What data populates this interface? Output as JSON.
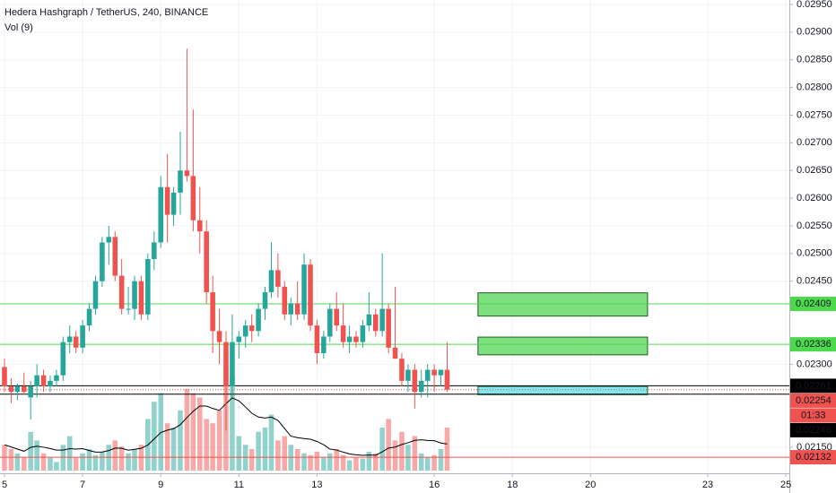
{
  "chart_data": {
    "type": "candlestick",
    "title": "Hedera Hashgraph / TetherUS, 240, BINANCE",
    "volume_title": "Vol (9)",
    "up_color": "#26a69a",
    "down_color": "#ef5350",
    "grid": true,
    "xlim": [
      4.885,
      25.09
    ],
    "xticks": [
      5,
      7,
      9,
      11,
      13,
      16,
      18,
      20,
      23,
      25
    ],
    "ylim": [
      0.02103,
      0.02958
    ],
    "yticks": [
      {
        "value": 0.0295,
        "label": "0.02950"
      },
      {
        "value": 0.029,
        "label": "0.02900"
      },
      {
        "value": 0.0285,
        "label": "0.02850"
      },
      {
        "value": 0.028,
        "label": "0.02800"
      },
      {
        "value": 0.0275,
        "label": "0.02750"
      },
      {
        "value": 0.027,
        "label": "0.02700"
      },
      {
        "value": 0.0265,
        "label": "0.02650"
      },
      {
        "value": 0.026,
        "label": "0.02600"
      },
      {
        "value": 0.0255,
        "label": "0.02550"
      },
      {
        "value": 0.025,
        "label": "0.02500"
      },
      {
        "value": 0.0245,
        "label": "0.02450"
      },
      {
        "value": 0.023,
        "label": "0.02300"
      },
      {
        "value": 0.0215,
        "label": "0.02150"
      }
    ],
    "x": [
      5.0,
      5.17,
      5.33,
      5.5,
      5.67,
      5.83,
      6.0,
      6.17,
      6.33,
      6.5,
      6.67,
      6.83,
      7.0,
      7.17,
      7.33,
      7.5,
      7.67,
      7.83,
      8.0,
      8.17,
      8.33,
      8.5,
      8.67,
      8.83,
      9.0,
      9.17,
      9.33,
      9.5,
      9.67,
      9.83,
      10.0,
      10.17,
      10.33,
      10.5,
      10.67,
      10.83,
      11.0,
      11.17,
      11.33,
      11.5,
      11.67,
      11.83,
      12.0,
      12.17,
      12.33,
      12.5,
      12.67,
      12.83,
      13.0,
      13.17,
      13.33,
      13.5,
      13.67,
      13.83,
      14.0,
      14.17,
      14.33,
      14.5,
      14.67,
      14.83,
      15.0,
      15.17,
      15.33,
      15.5,
      15.67,
      15.83,
      16.0,
      16.17,
      16.33
    ],
    "open": [
      0.02295,
      0.0226,
      0.0225,
      0.0226,
      0.0224,
      0.0226,
      0.0228,
      0.0226,
      0.0227,
      0.0228,
      0.0234,
      0.0235,
      0.0233,
      0.0237,
      0.024,
      0.0245,
      0.0252,
      0.0253,
      0.0246,
      0.024,
      0.024,
      0.0245,
      0.0239,
      0.0249,
      0.0252,
      0.0262,
      0.0257,
      0.0261,
      0.0265,
      0.0264,
      0.0256,
      0.0254,
      0.0243,
      0.0236,
      0.0234,
      0.0226,
      0.0234,
      0.0235,
      0.0237,
      0.0236,
      0.024,
      0.0243,
      0.0247,
      0.0244,
      0.0239,
      0.0241,
      0.0239,
      0.0248,
      0.0237,
      0.0232,
      0.0235,
      0.024,
      0.0237,
      0.0234,
      0.0235,
      0.0234,
      0.0237,
      0.0239,
      0.0236,
      0.024,
      0.0233,
      0.0231,
      0.0227,
      0.0229,
      0.0225,
      0.0227,
      0.0229,
      0.0228,
      0.0229
    ],
    "high": [
      0.0231,
      0.02275,
      0.02265,
      0.02285,
      0.0227,
      0.023,
      0.0229,
      0.0228,
      0.0229,
      0.0235,
      0.0237,
      0.0236,
      0.0238,
      0.0241,
      0.0246,
      0.0253,
      0.0255,
      0.0254,
      0.0249,
      0.0244,
      0.0246,
      0.0246,
      0.025,
      0.0254,
      0.0264,
      0.0268,
      0.0262,
      0.0272,
      0.0287,
      0.0276,
      0.0262,
      0.0256,
      0.0246,
      0.024,
      0.0236,
      0.0239,
      0.0236,
      0.0238,
      0.0239,
      0.0241,
      0.0244,
      0.0252,
      0.025,
      0.0245,
      0.0242,
      0.0245,
      0.025,
      0.0249,
      0.0238,
      0.0236,
      0.0241,
      0.0243,
      0.0241,
      0.0237,
      0.0236,
      0.0238,
      0.0243,
      0.024,
      0.025,
      0.0241,
      0.0244,
      0.0232,
      0.023,
      0.023,
      0.0229,
      0.023,
      0.023,
      0.0229,
      0.0234
    ],
    "low": [
      0.0225,
      0.0223,
      0.02235,
      0.02245,
      0.022,
      0.0224,
      0.0225,
      0.0225,
      0.0226,
      0.0227,
      0.0232,
      0.0232,
      0.0232,
      0.0236,
      0.0239,
      0.0244,
      0.0248,
      0.0245,
      0.0239,
      0.0239,
      0.0238,
      0.0238,
      0.0238,
      0.0247,
      0.0251,
      0.0252,
      0.0255,
      0.0257,
      0.0263,
      0.0254,
      0.025,
      0.0241,
      0.0232,
      0.023,
      0.0218,
      0.0224,
      0.0231,
      0.0233,
      0.0234,
      0.0235,
      0.0238,
      0.0242,
      0.0242,
      0.0238,
      0.0237,
      0.0238,
      0.0238,
      0.0236,
      0.023,
      0.0231,
      0.0234,
      0.0236,
      0.0233,
      0.0232,
      0.0233,
      0.0233,
      0.0236,
      0.0235,
      0.0235,
      0.0232,
      0.0231,
      0.0226,
      0.0225,
      0.0222,
      0.0224,
      0.0224,
      0.0225,
      0.0226,
      0.0225
    ],
    "close": [
      0.0226,
      0.0225,
      0.0226,
      0.0225,
      0.0226,
      0.0228,
      0.0226,
      0.0227,
      0.0228,
      0.0234,
      0.0235,
      0.0233,
      0.0237,
      0.024,
      0.0245,
      0.0252,
      0.0253,
      0.0246,
      0.024,
      0.024,
      0.0245,
      0.0239,
      0.0249,
      0.0252,
      0.0262,
      0.0257,
      0.0261,
      0.0265,
      0.0264,
      0.0256,
      0.0254,
      0.0243,
      0.0236,
      0.0234,
      0.0226,
      0.0234,
      0.0235,
      0.0237,
      0.0236,
      0.024,
      0.0243,
      0.0247,
      0.0244,
      0.0239,
      0.0241,
      0.0239,
      0.0248,
      0.0237,
      0.0232,
      0.0235,
      0.024,
      0.0237,
      0.0234,
      0.0235,
      0.0234,
      0.0237,
      0.0239,
      0.0236,
      0.024,
      0.0233,
      0.0231,
      0.0227,
      0.0229,
      0.0225,
      0.0227,
      0.0229,
      0.0228,
      0.0229,
      0.02254
    ],
    "volume": [
      30,
      25,
      20,
      15,
      45,
      35,
      20,
      15,
      10,
      30,
      40,
      15,
      20,
      25,
      18,
      22,
      30,
      35,
      28,
      20,
      25,
      30,
      60,
      80,
      90,
      55,
      50,
      70,
      95,
      90,
      85,
      60,
      55,
      70,
      125,
      110,
      40,
      30,
      25,
      45,
      50,
      65,
      35,
      40,
      30,
      25,
      20,
      18,
      22,
      15,
      20,
      25,
      18,
      12,
      15,
      14,
      22,
      20,
      50,
      60,
      35,
      45,
      30,
      40,
      20,
      15,
      18,
      25,
      50
    ],
    "drawings": [
      {
        "x": [
          17.12,
          21.46
        ],
        "y": [
          0.02387,
          0.02429
        ],
        "color": "#7ee07e"
      },
      {
        "x": [
          17.12,
          21.46
        ],
        "y": [
          0.02317,
          0.02349
        ],
        "color": "#7ee07e"
      },
      {
        "x": [
          17.12,
          21.46
        ],
        "y": [
          0.02245,
          0.0226
        ],
        "color": "#80e8f0"
      }
    ],
    "price_lines": [
      {
        "value": 0.02409,
        "label": "0.02409",
        "color": "#4cd94c",
        "text_color": "#131722"
      },
      {
        "value": 0.02336,
        "label": "0.02336",
        "color": "#4cd94c",
        "text_color": "#131722"
      },
      {
        "value": 0.02261,
        "label": "0.02261",
        "color": "#000000",
        "text_color": "#ffffff"
      },
      {
        "value": 0.02254,
        "label": "0.02254",
        "color": "#ef5350",
        "text_color": "#ffffff",
        "countdown": "01:33"
      },
      {
        "value": 0.02246,
        "label": "0.02246",
        "color": "#000000",
        "text_color": "#ffffff"
      },
      {
        "value": 0.02132,
        "label": "0.02132",
        "color": "#ef5350",
        "text_color": "#ffffff"
      }
    ]
  }
}
